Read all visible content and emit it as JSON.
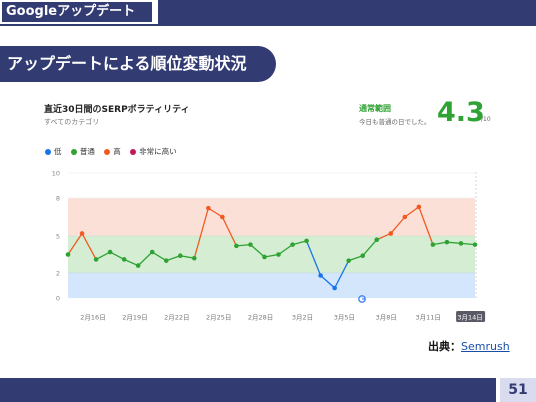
{
  "header": {
    "tab_title": "Googleアップデート"
  },
  "section": {
    "title": "アップデートによる順位変動状況"
  },
  "card": {
    "title": "直近30日間のSERPボラティリティ",
    "subtitle": "すべてのカテゴリ",
    "range_label": "通常範囲",
    "range_desc": "今日も普通の日でした。",
    "score": "4.3",
    "score_unit": "/10"
  },
  "legend": [
    {
      "label": "低",
      "color": "#1a73e8"
    },
    {
      "label": "普通",
      "color": "#2ea232"
    },
    {
      "label": "高",
      "color": "#f05a22"
    },
    {
      "label": "非常に高い",
      "color": "#c2185b"
    }
  ],
  "chart_data": {
    "type": "line",
    "y_ticks": [
      "0",
      "2",
      "5",
      "8",
      "10"
    ],
    "bands": [
      {
        "name": "低",
        "from": 0,
        "to": 2,
        "color": "#d4e6fb"
      },
      {
        "name": "普通",
        "from": 2,
        "to": 5,
        "color": "#d5edd3"
      },
      {
        "name": "高",
        "from": 5,
        "to": 8,
        "color": "#fbe0d8"
      }
    ],
    "x_labels": [
      "2月16日",
      "2月19日",
      "2月22日",
      "2月25日",
      "2月28日",
      "3月2日",
      "3月5日",
      "3月8日",
      "3月11日",
      "3月14日"
    ],
    "highlighted_label": "3月14日",
    "values": [
      3.5,
      5.2,
      3.1,
      3.7,
      3.1,
      2.6,
      3.7,
      3.0,
      3.4,
      3.2,
      7.2,
      6.5,
      4.2,
      4.3,
      3.3,
      3.5,
      4.3,
      4.6,
      1.8,
      0.8,
      3.0,
      3.4,
      4.7,
      5.2,
      6.5,
      7.3,
      4.3,
      4.5,
      4.4,
      4.3
    ],
    "ylim": [
      0,
      10
    ],
    "annotation_icon": "google-g-icon"
  },
  "source": {
    "label": "出典：",
    "link_text": "Semrush"
  },
  "footer": {
    "page_number": "51"
  },
  "colors": {
    "navy": "#333c72",
    "low": "#1a73e8",
    "normal": "#2ea232",
    "high": "#f05a22"
  }
}
